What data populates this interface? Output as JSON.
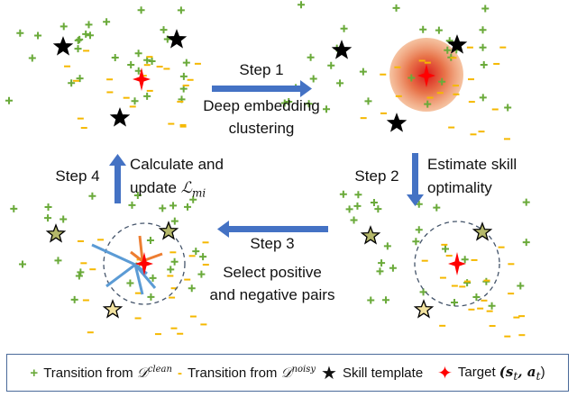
{
  "steps": {
    "step1": {
      "label": "Step 1",
      "line1": "Deep embedding",
      "line2": "clustering"
    },
    "step2": {
      "label": "Step 2",
      "line1": "Estimate skill",
      "line2": "optimality"
    },
    "step3": {
      "label": "Step 3",
      "line1": "Select positive",
      "line2": "and negative pairs"
    },
    "step4": {
      "label": "Step 4",
      "line1": "Calculate and",
      "line2_prefix": "update ",
      "line2_math": "ℒ",
      "line2_sub": "mi"
    }
  },
  "legend": {
    "clean": {
      "symbol": "+",
      "text": "Transition from ",
      "math": "𝒟",
      "sup": "clean"
    },
    "noisy": {
      "symbol": "-",
      "text": "Transition from ",
      "math": "𝒟",
      "sup": "noisy"
    },
    "skill": {
      "symbol": "★",
      "text": "Skill template"
    },
    "target": {
      "symbol": "✦",
      "text": "Target ",
      "math": "(s",
      "sub": "t",
      "math2": ", a",
      "sub2": "t",
      "close": ")"
    }
  },
  "colors": {
    "clean": "#6aaa3a",
    "noisy": "#f5b800",
    "star_fill_highlight": "#b5b86a",
    "target": "#ff0000",
    "arrow": "#4472c4",
    "positive_line": "#ed7d31",
    "negative_line": "#5b9bd5",
    "circle": "#44546a"
  }
}
